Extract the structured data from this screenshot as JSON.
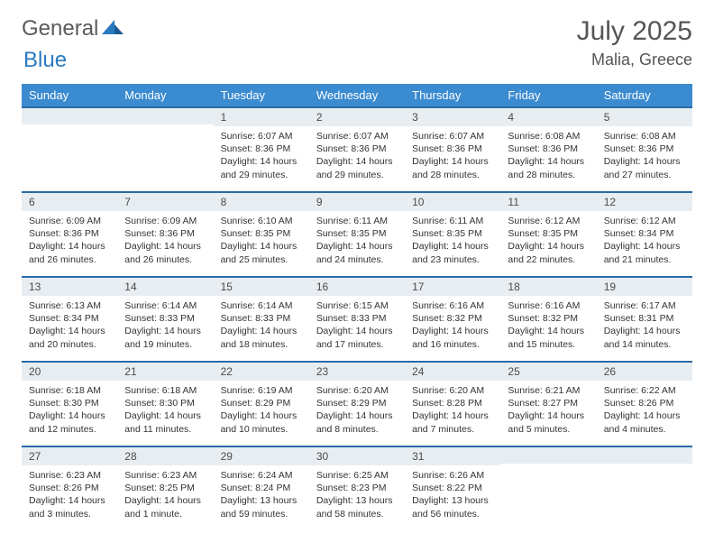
{
  "brand": {
    "part1": "General",
    "part2": "Blue"
  },
  "title": "July 2025",
  "location": "Malia, Greece",
  "colors": {
    "header_bg": "#3b8bd0",
    "header_text": "#ffffff",
    "daynum_bg": "#e8edf1",
    "row_border": "#2a6aa8",
    "brand_gray": "#5b5b5b",
    "brand_blue": "#2a7ac0"
  },
  "day_headers": [
    "Sunday",
    "Monday",
    "Tuesday",
    "Wednesday",
    "Thursday",
    "Friday",
    "Saturday"
  ],
  "weeks": [
    [
      {
        "n": "",
        "sunrise": "",
        "sunset": "",
        "daylight": ""
      },
      {
        "n": "",
        "sunrise": "",
        "sunset": "",
        "daylight": ""
      },
      {
        "n": "1",
        "sunrise": "Sunrise: 6:07 AM",
        "sunset": "Sunset: 8:36 PM",
        "daylight": "Daylight: 14 hours and 29 minutes."
      },
      {
        "n": "2",
        "sunrise": "Sunrise: 6:07 AM",
        "sunset": "Sunset: 8:36 PM",
        "daylight": "Daylight: 14 hours and 29 minutes."
      },
      {
        "n": "3",
        "sunrise": "Sunrise: 6:07 AM",
        "sunset": "Sunset: 8:36 PM",
        "daylight": "Daylight: 14 hours and 28 minutes."
      },
      {
        "n": "4",
        "sunrise": "Sunrise: 6:08 AM",
        "sunset": "Sunset: 8:36 PM",
        "daylight": "Daylight: 14 hours and 28 minutes."
      },
      {
        "n": "5",
        "sunrise": "Sunrise: 6:08 AM",
        "sunset": "Sunset: 8:36 PM",
        "daylight": "Daylight: 14 hours and 27 minutes."
      }
    ],
    [
      {
        "n": "6",
        "sunrise": "Sunrise: 6:09 AM",
        "sunset": "Sunset: 8:36 PM",
        "daylight": "Daylight: 14 hours and 26 minutes."
      },
      {
        "n": "7",
        "sunrise": "Sunrise: 6:09 AM",
        "sunset": "Sunset: 8:36 PM",
        "daylight": "Daylight: 14 hours and 26 minutes."
      },
      {
        "n": "8",
        "sunrise": "Sunrise: 6:10 AM",
        "sunset": "Sunset: 8:35 PM",
        "daylight": "Daylight: 14 hours and 25 minutes."
      },
      {
        "n": "9",
        "sunrise": "Sunrise: 6:11 AM",
        "sunset": "Sunset: 8:35 PM",
        "daylight": "Daylight: 14 hours and 24 minutes."
      },
      {
        "n": "10",
        "sunrise": "Sunrise: 6:11 AM",
        "sunset": "Sunset: 8:35 PM",
        "daylight": "Daylight: 14 hours and 23 minutes."
      },
      {
        "n": "11",
        "sunrise": "Sunrise: 6:12 AM",
        "sunset": "Sunset: 8:35 PM",
        "daylight": "Daylight: 14 hours and 22 minutes."
      },
      {
        "n": "12",
        "sunrise": "Sunrise: 6:12 AM",
        "sunset": "Sunset: 8:34 PM",
        "daylight": "Daylight: 14 hours and 21 minutes."
      }
    ],
    [
      {
        "n": "13",
        "sunrise": "Sunrise: 6:13 AM",
        "sunset": "Sunset: 8:34 PM",
        "daylight": "Daylight: 14 hours and 20 minutes."
      },
      {
        "n": "14",
        "sunrise": "Sunrise: 6:14 AM",
        "sunset": "Sunset: 8:33 PM",
        "daylight": "Daylight: 14 hours and 19 minutes."
      },
      {
        "n": "15",
        "sunrise": "Sunrise: 6:14 AM",
        "sunset": "Sunset: 8:33 PM",
        "daylight": "Daylight: 14 hours and 18 minutes."
      },
      {
        "n": "16",
        "sunrise": "Sunrise: 6:15 AM",
        "sunset": "Sunset: 8:33 PM",
        "daylight": "Daylight: 14 hours and 17 minutes."
      },
      {
        "n": "17",
        "sunrise": "Sunrise: 6:16 AM",
        "sunset": "Sunset: 8:32 PM",
        "daylight": "Daylight: 14 hours and 16 minutes."
      },
      {
        "n": "18",
        "sunrise": "Sunrise: 6:16 AM",
        "sunset": "Sunset: 8:32 PM",
        "daylight": "Daylight: 14 hours and 15 minutes."
      },
      {
        "n": "19",
        "sunrise": "Sunrise: 6:17 AM",
        "sunset": "Sunset: 8:31 PM",
        "daylight": "Daylight: 14 hours and 14 minutes."
      }
    ],
    [
      {
        "n": "20",
        "sunrise": "Sunrise: 6:18 AM",
        "sunset": "Sunset: 8:30 PM",
        "daylight": "Daylight: 14 hours and 12 minutes."
      },
      {
        "n": "21",
        "sunrise": "Sunrise: 6:18 AM",
        "sunset": "Sunset: 8:30 PM",
        "daylight": "Daylight: 14 hours and 11 minutes."
      },
      {
        "n": "22",
        "sunrise": "Sunrise: 6:19 AM",
        "sunset": "Sunset: 8:29 PM",
        "daylight": "Daylight: 14 hours and 10 minutes."
      },
      {
        "n": "23",
        "sunrise": "Sunrise: 6:20 AM",
        "sunset": "Sunset: 8:29 PM",
        "daylight": "Daylight: 14 hours and 8 minutes."
      },
      {
        "n": "24",
        "sunrise": "Sunrise: 6:20 AM",
        "sunset": "Sunset: 8:28 PM",
        "daylight": "Daylight: 14 hours and 7 minutes."
      },
      {
        "n": "25",
        "sunrise": "Sunrise: 6:21 AM",
        "sunset": "Sunset: 8:27 PM",
        "daylight": "Daylight: 14 hours and 5 minutes."
      },
      {
        "n": "26",
        "sunrise": "Sunrise: 6:22 AM",
        "sunset": "Sunset: 8:26 PM",
        "daylight": "Daylight: 14 hours and 4 minutes."
      }
    ],
    [
      {
        "n": "27",
        "sunrise": "Sunrise: 6:23 AM",
        "sunset": "Sunset: 8:26 PM",
        "daylight": "Daylight: 14 hours and 3 minutes."
      },
      {
        "n": "28",
        "sunrise": "Sunrise: 6:23 AM",
        "sunset": "Sunset: 8:25 PM",
        "daylight": "Daylight: 14 hours and 1 minute."
      },
      {
        "n": "29",
        "sunrise": "Sunrise: 6:24 AM",
        "sunset": "Sunset: 8:24 PM",
        "daylight": "Daylight: 13 hours and 59 minutes."
      },
      {
        "n": "30",
        "sunrise": "Sunrise: 6:25 AM",
        "sunset": "Sunset: 8:23 PM",
        "daylight": "Daylight: 13 hours and 58 minutes."
      },
      {
        "n": "31",
        "sunrise": "Sunrise: 6:26 AM",
        "sunset": "Sunset: 8:22 PM",
        "daylight": "Daylight: 13 hours and 56 minutes."
      },
      {
        "n": "",
        "sunrise": "",
        "sunset": "",
        "daylight": ""
      },
      {
        "n": "",
        "sunrise": "",
        "sunset": "",
        "daylight": ""
      }
    ]
  ]
}
